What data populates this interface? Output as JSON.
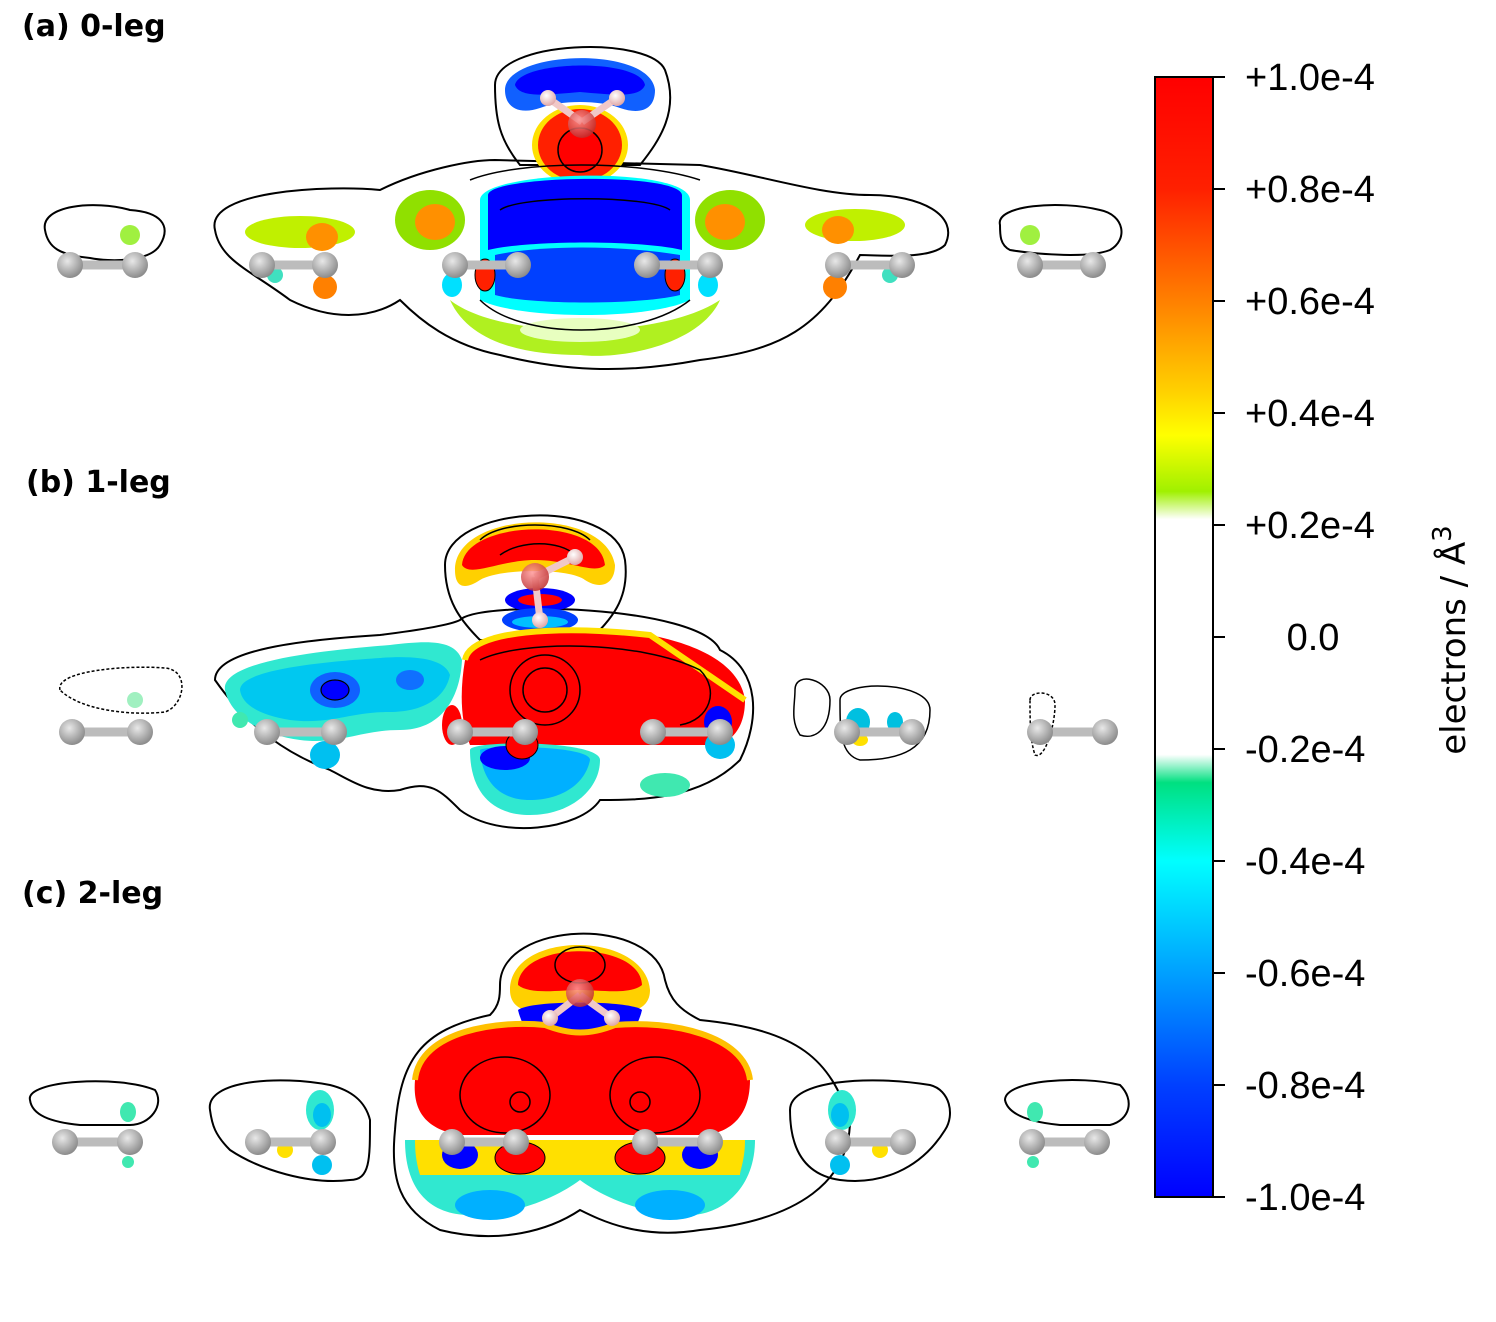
{
  "panels": [
    {
      "label": "(a) 0-leg"
    },
    {
      "label": "(b) 1-leg"
    },
    {
      "label": "(c) 2-leg"
    }
  ],
  "colorbar": {
    "title": "electrons / Å",
    "title_superscript": "3",
    "min": -0.0001,
    "max": 0.0001,
    "ticks": [
      {
        "value": 0.0001,
        "label": "+1.0e-4"
      },
      {
        "value": 8e-05,
        "label": "+0.8e-4"
      },
      {
        "value": 6e-05,
        "label": "+0.6e-4"
      },
      {
        "value": 4e-05,
        "label": "+0.4e-4"
      },
      {
        "value": 2e-05,
        "label": "+0.2e-4"
      },
      {
        "value": 0.0,
        "label": "0.0"
      },
      {
        "value": -2e-05,
        "label": "-0.2e-4"
      },
      {
        "value": -4e-05,
        "label": "-0.4e-4"
      },
      {
        "value": -6e-05,
        "label": "-0.6e-4"
      },
      {
        "value": -8e-05,
        "label": "-0.8e-4"
      },
      {
        "value": -0.0001,
        "label": "-1.0e-4"
      }
    ],
    "colors": {
      "max": "#ff0000",
      "high": "#ff8000",
      "mid_high": "#ffff00",
      "low_pos": "#80e000",
      "zero": "#ffffff",
      "low_neg": "#00e080",
      "mid_neg": "#00ffff",
      "high_neg": "#0080ff",
      "min": "#0000ff"
    }
  },
  "atoms": {
    "carbon_color": "#a8a8a8",
    "oxygen_color": "#e04848",
    "hydrogen_color": "#f4c8c8"
  }
}
